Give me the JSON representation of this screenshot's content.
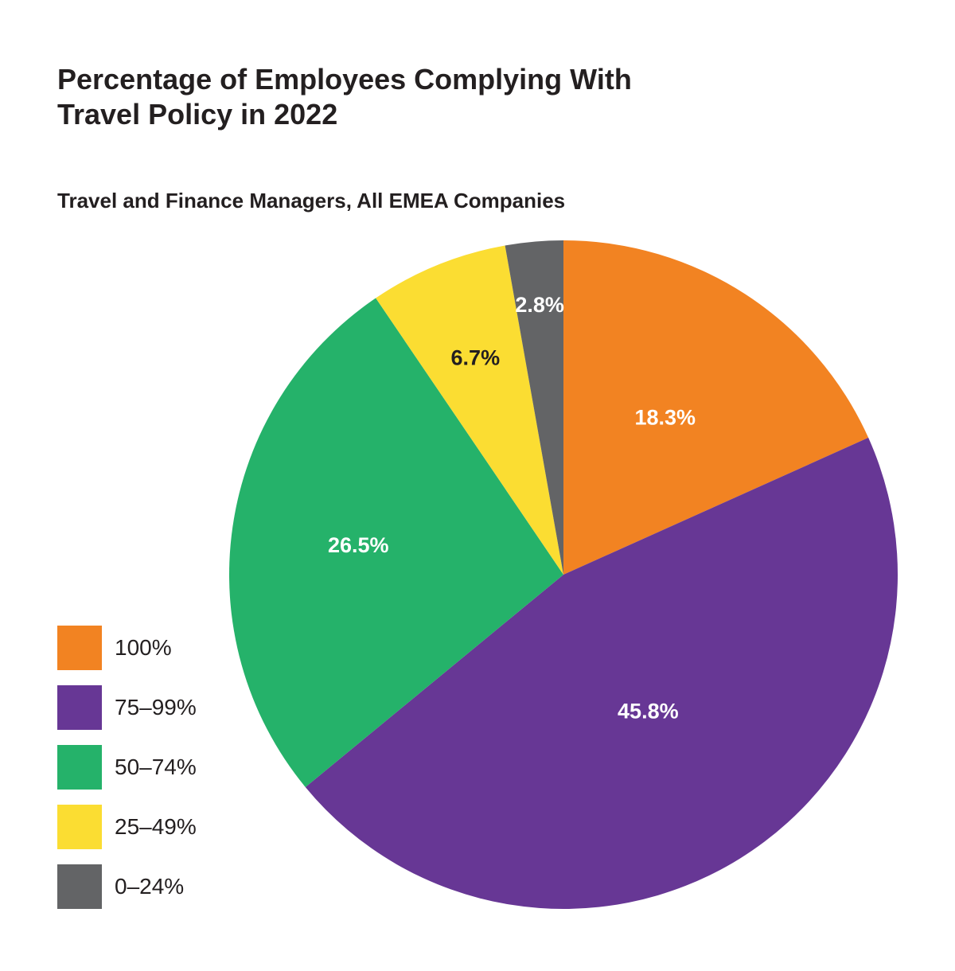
{
  "chart_data": {
    "type": "pie",
    "title_lines": [
      "Percentage of Employees Complying With",
      "Travel Policy in 2022"
    ],
    "subtitle": "Travel and Finance Managers, All EMEA Companies",
    "legend_placement": "bottom-left",
    "start_angle_deg": 0,
    "direction": "clockwise",
    "slices": [
      {
        "category": "100%",
        "value": 18.3,
        "label": "18.3%",
        "color": "#f28322",
        "label_color": "#ffffff"
      },
      {
        "category": "75–99%",
        "value": 45.8,
        "label": "45.8%",
        "color": "#673795",
        "label_color": "#ffffff"
      },
      {
        "category": "50–74%",
        "value": 26.5,
        "label": "26.5%",
        "color": "#25b26a",
        "label_color": "#ffffff"
      },
      {
        "category": "25–49%",
        "value": 6.7,
        "label": "6.7%",
        "color": "#fbdd32",
        "label_color": "#231f20"
      },
      {
        "category": "0–24%",
        "value": 2.8,
        "label": "2.8%",
        "color": "#636466",
        "label_color": "#ffffff"
      }
    ]
  }
}
